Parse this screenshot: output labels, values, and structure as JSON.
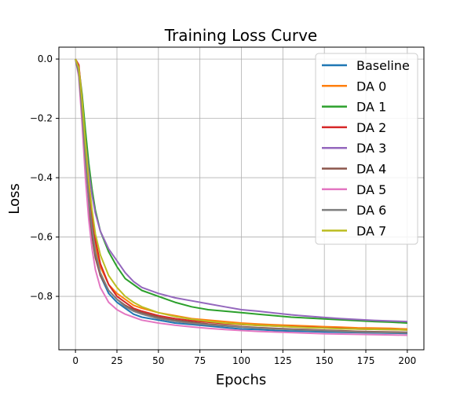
{
  "chart_data": {
    "type": "line",
    "title": "Training Loss Curve",
    "xlabel": "Epochs",
    "ylabel": "Loss",
    "xlim": [
      -10,
      210
    ],
    "ylim": [
      -0.98,
      0.04
    ],
    "xticks": [
      0,
      25,
      50,
      75,
      100,
      125,
      150,
      175,
      200
    ],
    "yticks": [
      0.0,
      -0.2,
      -0.4,
      -0.6,
      -0.8
    ],
    "ytick_labels": [
      "0.0",
      "−0.2",
      "−0.4",
      "−0.6",
      "−0.8"
    ],
    "grid": true,
    "legend_position": "upper right",
    "x": [
      0,
      2,
      4,
      6,
      8,
      10,
      12,
      15,
      20,
      25,
      30,
      35,
      40,
      50,
      60,
      70,
      80,
      90,
      100,
      110,
      120,
      130,
      140,
      150,
      160,
      170,
      180,
      190,
      200
    ],
    "series": [
      {
        "name": "Baseline",
        "color": "#1f77b4",
        "values": [
          0.0,
          -0.05,
          -0.18,
          -0.35,
          -0.48,
          -0.58,
          -0.66,
          -0.73,
          -0.79,
          -0.82,
          -0.84,
          -0.86,
          -0.87,
          -0.88,
          -0.89,
          -0.895,
          -0.9,
          -0.905,
          -0.91,
          -0.912,
          -0.915,
          -0.917,
          -0.918,
          -0.92,
          -0.921,
          -0.922,
          -0.923,
          -0.924,
          -0.925
        ]
      },
      {
        "name": "DA 0",
        "color": "#ff7f0e",
        "values": [
          0.0,
          -0.04,
          -0.15,
          -0.31,
          -0.44,
          -0.55,
          -0.63,
          -0.7,
          -0.76,
          -0.79,
          -0.81,
          -0.83,
          -0.84,
          -0.855,
          -0.865,
          -0.875,
          -0.88,
          -0.885,
          -0.89,
          -0.893,
          -0.896,
          -0.898,
          -0.9,
          -0.902,
          -0.904,
          -0.906,
          -0.907,
          -0.908,
          -0.91
        ]
      },
      {
        "name": "DA 1",
        "color": "#2ca02c",
        "values": [
          0.0,
          -0.03,
          -0.12,
          -0.24,
          -0.35,
          -0.44,
          -0.51,
          -0.58,
          -0.65,
          -0.7,
          -0.74,
          -0.76,
          -0.78,
          -0.8,
          -0.82,
          -0.835,
          -0.845,
          -0.85,
          -0.855,
          -0.86,
          -0.865,
          -0.87,
          -0.873,
          -0.876,
          -0.879,
          -0.882,
          -0.885,
          -0.887,
          -0.89
        ]
      },
      {
        "name": "DA 2",
        "color": "#d62728",
        "values": [
          0.0,
          -0.02,
          -0.14,
          -0.3,
          -0.43,
          -0.53,
          -0.61,
          -0.69,
          -0.76,
          -0.8,
          -0.82,
          -0.84,
          -0.85,
          -0.865,
          -0.875,
          -0.882,
          -0.887,
          -0.892,
          -0.895,
          -0.898,
          -0.9,
          -0.902,
          -0.904,
          -0.906,
          -0.908,
          -0.91,
          -0.911,
          -0.912,
          -0.913
        ]
      },
      {
        "name": "DA 3",
        "color": "#9467bd",
        "values": [
          0.0,
          -0.04,
          -0.16,
          -0.28,
          -0.38,
          -0.46,
          -0.52,
          -0.58,
          -0.64,
          -0.68,
          -0.72,
          -0.75,
          -0.77,
          -0.79,
          -0.805,
          -0.815,
          -0.825,
          -0.835,
          -0.845,
          -0.85,
          -0.856,
          -0.862,
          -0.867,
          -0.871,
          -0.875,
          -0.878,
          -0.881,
          -0.883,
          -0.885
        ]
      },
      {
        "name": "DA 4",
        "color": "#8c564b",
        "values": [
          0.0,
          -0.05,
          -0.19,
          -0.36,
          -0.5,
          -0.6,
          -0.67,
          -0.73,
          -0.78,
          -0.81,
          -0.83,
          -0.845,
          -0.855,
          -0.87,
          -0.88,
          -0.887,
          -0.893,
          -0.898,
          -0.902,
          -0.905,
          -0.908,
          -0.91,
          -0.912,
          -0.914,
          -0.916,
          -0.918,
          -0.919,
          -0.92,
          -0.921
        ]
      },
      {
        "name": "DA 5",
        "color": "#e377c2",
        "values": [
          0.0,
          -0.06,
          -0.22,
          -0.4,
          -0.54,
          -0.64,
          -0.71,
          -0.77,
          -0.82,
          -0.845,
          -0.86,
          -0.87,
          -0.88,
          -0.89,
          -0.897,
          -0.903,
          -0.908,
          -0.912,
          -0.915,
          -0.918,
          -0.92,
          -0.922,
          -0.924,
          -0.926,
          -0.927,
          -0.928,
          -0.929,
          -0.93,
          -0.931
        ]
      },
      {
        "name": "DA 6",
        "color": "#7f7f7f",
        "values": [
          0.0,
          -0.05,
          -0.18,
          -0.34,
          -0.47,
          -0.57,
          -0.65,
          -0.72,
          -0.78,
          -0.81,
          -0.835,
          -0.85,
          -0.86,
          -0.875,
          -0.884,
          -0.891,
          -0.896,
          -0.9,
          -0.904,
          -0.907,
          -0.91,
          -0.912,
          -0.914,
          -0.916,
          -0.918,
          -0.92,
          -0.921,
          -0.922,
          -0.923
        ]
      },
      {
        "name": "DA 7",
        "color": "#bcbd22",
        "values": [
          0.0,
          -0.03,
          -0.14,
          -0.28,
          -0.41,
          -0.51,
          -0.59,
          -0.66,
          -0.73,
          -0.77,
          -0.8,
          -0.82,
          -0.835,
          -0.855,
          -0.868,
          -0.877,
          -0.884,
          -0.89,
          -0.894,
          -0.898,
          -0.9,
          -0.903,
          -0.905,
          -0.907,
          -0.909,
          -0.91,
          -0.911,
          -0.912,
          -0.913
        ]
      }
    ]
  }
}
